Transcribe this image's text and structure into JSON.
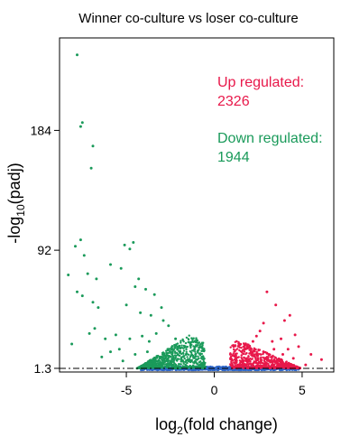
{
  "chart_data": {
    "type": "scatter",
    "title": "Winner co-culture vs loser co-culture",
    "xlabel": {
      "main": "log",
      "sub": "2",
      "rest": "(fold change)"
    },
    "ylabel": {
      "main": "-log",
      "sub": "10",
      "rest": "(padj)"
    },
    "xlim": [
      -8.8,
      6.8
    ],
    "ylim": [
      -1.5,
      255
    ],
    "x_ticks": [
      -5,
      0,
      5
    ],
    "y_ticks": [
      1.3,
      92,
      184
    ],
    "threshold_y": 1.3,
    "grid": false,
    "annotations": [
      {
        "label": "Up regulated:",
        "value": "2326",
        "color": "#e8184a"
      },
      {
        "label": "Down regulated:",
        "value": "1944",
        "color": "#1a9a5a"
      }
    ],
    "series": [
      {
        "color": "#1a9a5a",
        "points": [
          [
            -7.8,
            242
          ],
          [
            -7.5,
            190
          ],
          [
            -7.6,
            187
          ],
          [
            -6.9,
            172
          ],
          [
            -7.0,
            155
          ],
          [
            -7.6,
            100
          ],
          [
            -7.9,
            95
          ],
          [
            -7.4,
            88
          ],
          [
            -8.3,
            73
          ],
          [
            -7.2,
            74
          ],
          [
            -6.7,
            70
          ],
          [
            -7.8,
            60
          ],
          [
            -7.5,
            57
          ],
          [
            -6.9,
            52
          ],
          [
            -6.6,
            48
          ],
          [
            -5.1,
            96
          ],
          [
            -4.6,
            98
          ],
          [
            -4.8,
            93
          ],
          [
            -5.9,
            81
          ],
          [
            -5.3,
            78
          ],
          [
            -4.3,
            70
          ],
          [
            -4.5,
            64
          ],
          [
            -3.9,
            62
          ],
          [
            -3.4,
            58
          ],
          [
            -5.0,
            50
          ],
          [
            -4.2,
            44
          ],
          [
            -3.6,
            42
          ],
          [
            -3.0,
            48
          ],
          [
            -2.9,
            38
          ],
          [
            -6.8,
            32
          ],
          [
            -7.1,
            28
          ],
          [
            -6.2,
            24
          ],
          [
            -5.6,
            27
          ],
          [
            -4.8,
            24
          ],
          [
            -4.1,
            26
          ],
          [
            -8.1,
            20
          ],
          [
            -5.9,
            14
          ],
          [
            -5.4,
            16
          ],
          [
            -3.7,
            22
          ],
          [
            -3.3,
            28
          ],
          [
            -2.6,
            34
          ],
          [
            -2.2,
            24
          ],
          [
            -4.5,
            12
          ],
          [
            -3.8,
            14
          ],
          [
            -2.6,
            16
          ],
          [
            -6.4,
            10
          ],
          [
            -5.2,
            7
          ],
          [
            -3.0,
            10
          ],
          [
            -2.0,
            18
          ],
          [
            -1.6,
            12
          ]
        ]
      },
      {
        "color": "#e8184a",
        "points": [
          [
            3.0,
            60
          ],
          [
            3.5,
            50
          ],
          [
            4.3,
            42
          ],
          [
            4.0,
            38
          ],
          [
            2.8,
            36
          ],
          [
            2.6,
            30
          ],
          [
            4.6,
            27
          ],
          [
            3.8,
            24
          ],
          [
            3.3,
            22
          ],
          [
            2.2,
            22
          ],
          [
            4.8,
            18
          ],
          [
            4.2,
            16
          ],
          [
            3.4,
            16
          ],
          [
            2.8,
            14
          ],
          [
            2.1,
            14
          ],
          [
            5.5,
            12
          ],
          [
            6.1,
            8
          ],
          [
            4.5,
            9
          ],
          [
            3.6,
            8
          ],
          [
            2.5,
            9
          ],
          [
            5.2,
            4
          ],
          [
            1.9,
            18
          ],
          [
            2.4,
            26
          ],
          [
            3.1,
            12
          ],
          [
            3.9,
            12
          ]
        ]
      }
    ]
  }
}
